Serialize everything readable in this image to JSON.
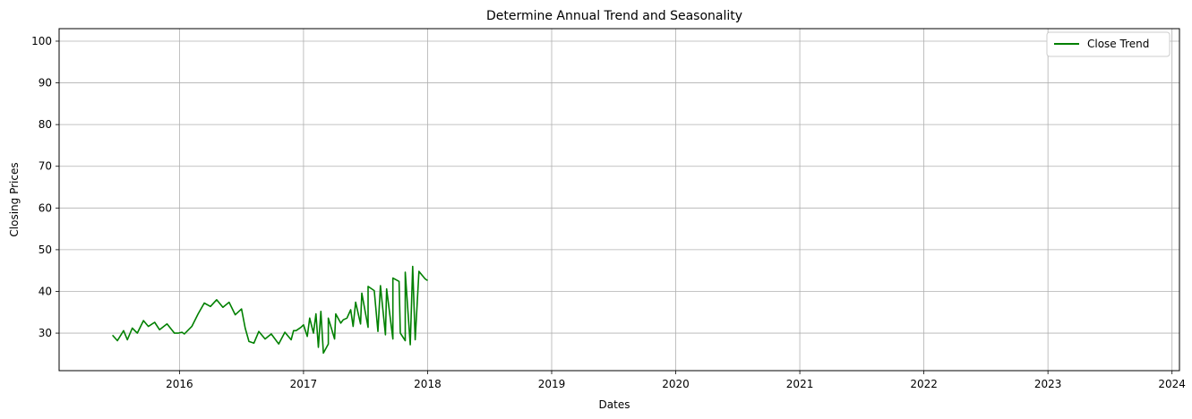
{
  "chart_data": {
    "type": "line",
    "title": "Determine Annual Trend and Seasonality",
    "xlabel": "Dates",
    "ylabel": "Closing Prices",
    "xlim": [
      2015.03,
      2024.06
    ],
    "ylim": [
      21,
      103
    ],
    "x_ticks": [
      2016,
      2017,
      2018,
      2019,
      2020,
      2021,
      2022,
      2023,
      2024
    ],
    "y_ticks": [
      30,
      40,
      50,
      60,
      70,
      80,
      90,
      100
    ],
    "grid": true,
    "legend_position": "top-right",
    "series": [
      {
        "name": "Close Trend",
        "color": "#008000",
        "points": [
          [
            2015.46,
            29.5
          ],
          [
            2015.5,
            28.2
          ],
          [
            2015.55,
            30.6
          ],
          [
            2015.58,
            28.4
          ],
          [
            2015.62,
            31.2
          ],
          [
            2015.66,
            30.0
          ],
          [
            2015.71,
            33.0
          ],
          [
            2015.75,
            31.6
          ],
          [
            2015.8,
            32.6
          ],
          [
            2015.84,
            30.8
          ],
          [
            2015.9,
            32.2
          ],
          [
            2015.96,
            30.0
          ],
          [
            2016.02,
            30.2
          ],
          [
            2015.99,
            30.0
          ],
          [
            2016.04,
            29.8
          ],
          [
            2016.1,
            31.6
          ],
          [
            2016.15,
            34.6
          ],
          [
            2016.2,
            37.2
          ],
          [
            2016.25,
            36.4
          ],
          [
            2016.3,
            38.0
          ],
          [
            2016.35,
            36.2
          ],
          [
            2016.4,
            37.4
          ],
          [
            2016.45,
            34.4
          ],
          [
            2016.5,
            35.8
          ],
          [
            2016.53,
            31.2
          ],
          [
            2016.56,
            28.0
          ],
          [
            2016.6,
            27.6
          ],
          [
            2016.64,
            30.4
          ],
          [
            2016.69,
            28.6
          ],
          [
            2016.74,
            29.8
          ],
          [
            2016.8,
            27.4
          ],
          [
            2016.85,
            30.2
          ],
          [
            2016.92,
            30.6
          ],
          [
            2016.98,
            31.4
          ],
          [
            2017.03,
            29.2
          ],
          [
            2017.08,
            30.0
          ],
          [
            2017.12,
            26.6
          ],
          [
            2017.16,
            25.2
          ],
          [
            2017.2,
            27.4
          ],
          [
            2017.25,
            28.6
          ],
          [
            2017.3,
            32.4
          ],
          [
            2017.35,
            33.6
          ],
          [
            2017.4,
            31.6
          ],
          [
            2017.46,
            32.2
          ],
          [
            2017.52,
            31.4
          ],
          [
            2017.6,
            30.4
          ],
          [
            2017.66,
            29.6
          ],
          [
            2017.72,
            28.6
          ],
          [
            2017.78,
            30.0
          ],
          [
            2017.82,
            28.2
          ],
          [
            2017.86,
            27.2
          ],
          [
            2017.9,
            28.4
          ],
          [
            2016.9,
            28.4
          ],
          [
            2016.94,
            30.6
          ],
          [
            2017.0,
            32.0
          ],
          [
            2017.05,
            33.6
          ],
          [
            2017.1,
            34.6
          ],
          [
            2017.14,
            35.2
          ],
          [
            2017.2,
            33.6
          ],
          [
            2017.26,
            34.6
          ],
          [
            2017.32,
            33.2
          ],
          [
            2017.38,
            35.6
          ],
          [
            2017.42,
            37.4
          ],
          [
            2017.47,
            39.6
          ],
          [
            2017.52,
            41.2
          ],
          [
            2017.57,
            40.2
          ],
          [
            2017.62,
            41.4
          ],
          [
            2017.67,
            40.6
          ],
          [
            2017.72,
            43.2
          ],
          [
            2017.77,
            42.4
          ],
          [
            2017.82,
            44.6
          ],
          [
            2017.88,
            46.0
          ],
          [
            2017.93,
            44.8
          ],
          [
            2017.98,
            43.0
          ],
          [
            2018.0,
            42.6
          ]
        ]
      }
    ]
  }
}
